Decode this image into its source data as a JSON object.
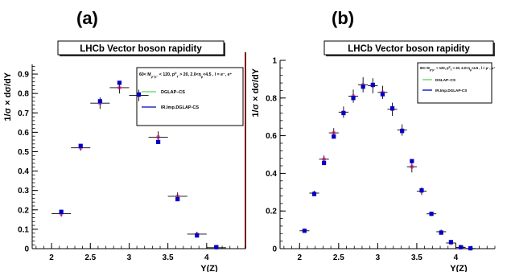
{
  "chart_data": [
    {
      "panel_label": "(a)",
      "type": "scatter",
      "title": "LHCb Vector boson rapidity",
      "xlabel": "Y(Z)",
      "ylabel": "1/σ × dσ/dY",
      "xlim": [
        1.75,
        4.5
      ],
      "ylim": [
        0,
        0.95
      ],
      "xticks": [
        "2",
        "2.5",
        "3",
        "3.5",
        "4"
      ],
      "yticks": [
        "0",
        "0.1",
        "0.2",
        "0.3",
        "0.4",
        "0.5",
        "0.6",
        "0.7",
        "0.8",
        "0.9"
      ],
      "legend": {
        "placement": "top-right",
        "header": "60< M",
        "header_sub": "μ⁺μ⁻",
        "header_rest": " < 120, p",
        "header_sup": "μ",
        "header_sub2": "T",
        "header_tail": " > 20, 2.0<η",
        "header_sub3": "μ",
        "header_end": "<4.5 , l = e⁻, e⁺",
        "entries": [
          {
            "label": "DGLAP–CS",
            "color": "#5fd35f"
          },
          {
            "label": "IR.Imp.DGLAP-CS",
            "color": "#0000c8"
          }
        ]
      },
      "series": [
        {
          "x": [
            2.125,
            2.375,
            2.625,
            2.875,
            3.125,
            3.375,
            3.625,
            3.875,
            4.125
          ],
          "y": [
            0.18,
            0.52,
            0.75,
            0.83,
            0.79,
            0.575,
            0.27,
            0.075,
            0.005
          ],
          "yerr": [
            0.015,
            0.015,
            0.03,
            0.03,
            0.03,
            0.03,
            0.02,
            0.012,
            0.004
          ],
          "xerr": 0.125,
          "color": "#cc0077"
        },
        {
          "x": [
            2.125,
            2.375,
            2.625,
            2.875,
            3.125,
            3.375,
            3.625,
            3.875,
            4.125
          ],
          "y": [
            0.19,
            0.53,
            0.76,
            0.855,
            0.795,
            0.55,
            0.255,
            0.068,
            0.008
          ],
          "color": "#0000c8"
        }
      ]
    },
    {
      "panel_label": "(b)",
      "type": "scatter",
      "title": "LHCb Vector boson rapidity",
      "xlabel": "Y(Z)",
      "ylabel": "1/σ × dσ/dY",
      "xlim": [
        1.75,
        4.5
      ],
      "ylim": [
        0,
        1
      ],
      "xticks": [
        "2",
        "2.5",
        "3",
        "3.5",
        "4"
      ],
      "yticks": [
        "0",
        "0.2",
        "0.4",
        "0.6",
        "0.8",
        "1"
      ],
      "legend": {
        "placement": "top-right",
        "header": "60< M",
        "header_sub": "μ⁺μ⁻",
        "header_rest": " < 120, p",
        "header_sup": "μ",
        "header_sub2": "T",
        "header_tail": " > 20, 2.0<η",
        "header_sub3": "μ",
        "header_end": "<4.5 , l = μ⁻, μ⁺",
        "entries": [
          {
            "label": "DGLAP–CS",
            "color": "#5fd35f"
          },
          {
            "label": "IR.Imp.DGLAP-CS",
            "color": "#0000c8"
          }
        ]
      },
      "series": [
        {
          "x": [
            2.0625,
            2.1875,
            2.3125,
            2.4375,
            2.5625,
            2.6875,
            2.8125,
            2.9375,
            3.0625,
            3.1875,
            3.3125,
            3.4375,
            3.5625,
            3.6875,
            3.8125,
            3.9375,
            4.0625,
            4.1875
          ],
          "y": [
            0.095,
            0.295,
            0.475,
            0.615,
            0.725,
            0.81,
            0.87,
            0.865,
            0.83,
            0.74,
            0.63,
            0.435,
            0.305,
            0.185,
            0.09,
            0.03,
            0.006,
            0.001
          ],
          "yerr": [
            0.008,
            0.012,
            0.02,
            0.025,
            0.03,
            0.035,
            0.04,
            0.04,
            0.035,
            0.035,
            0.03,
            0.03,
            0.02,
            0.012,
            0.01,
            0.006,
            0.003,
            0.001
          ],
          "xerr": 0.0625,
          "color": "#cc0077"
        },
        {
          "x": [
            2.0625,
            2.1875,
            2.3125,
            2.4375,
            2.5625,
            2.6875,
            2.8125,
            2.9375,
            3.0625,
            3.1875,
            3.3125,
            3.4375,
            3.5625,
            3.6875,
            3.8125,
            3.9375,
            4.0625,
            4.1875
          ],
          "y": [
            0.095,
            0.29,
            0.455,
            0.595,
            0.72,
            0.8,
            0.86,
            0.87,
            0.82,
            0.745,
            0.625,
            0.465,
            0.31,
            0.185,
            0.085,
            0.035,
            0.008,
            0.002
          ],
          "color": "#0000c8"
        }
      ]
    }
  ]
}
